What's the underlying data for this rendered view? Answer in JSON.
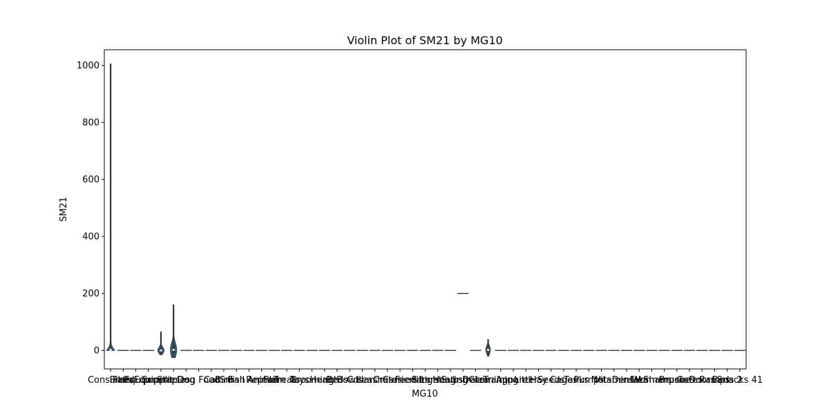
{
  "chart_data": {
    "type": "violin",
    "title": "Violin Plot of SM21 by MG10",
    "xlabel": "MG10",
    "ylabel": "SM21",
    "ylim": [
      -65,
      1055
    ],
    "yticks": [
      0,
      200,
      400,
      600,
      800,
      1000
    ],
    "n_categories": 51,
    "colors": {
      "fill": "#3a5f80",
      "line": "#333333",
      "axis": "#000000"
    },
    "categories": [
      "Consumer",
      "Flats",
      "Flats/Equip.",
      "Equipment",
      "Supplies",
      "Staples",
      "Dog",
      "Dog Food",
      "Cat",
      "Bird",
      "Fish",
      "Small Animal",
      "Reptile",
      "Farm",
      "Treats",
      "Toys",
      "Grooming",
      "Health",
      "Beds",
      "Bowls",
      "Collars",
      "Leashes",
      "Crates",
      "Carriers",
      "Feeders",
      "Filters",
      "Lighting",
      "Heating",
      "Substrate",
      "Decor",
      "Cleaning",
      "Training",
      "Apparel",
      "Litter",
      "Hay",
      "Seeds",
      "Cages",
      "Tanks",
      "Pumps",
      "Nets",
      "Vitamins",
      "Dental",
      "Flea",
      "Wormers",
      "Shampoo",
      "Brushes",
      "Gates",
      "Doors",
      "Ramps",
      "Beds 2",
      "Snacks 41"
    ],
    "violins": [
      {
        "index": 0,
        "min": 0,
        "max": 1005,
        "median": 2,
        "q1": 0,
        "q3": 5,
        "peak": 5,
        "half_width": 0.45
      },
      {
        "index": 1,
        "min": 0,
        "max": 0,
        "median": 0,
        "q1": 0,
        "q3": 0,
        "peak": 0,
        "half_width": 0.45
      },
      {
        "index": 2,
        "min": 0,
        "max": 0,
        "median": 0,
        "q1": 0,
        "q3": 0,
        "peak": 0,
        "half_width": 0.45
      },
      {
        "index": 3,
        "min": 0,
        "max": 0,
        "median": 0,
        "q1": 0,
        "q3": 0,
        "peak": 0,
        "half_width": 0.45
      },
      {
        "index": 4,
        "min": -15,
        "max": 65,
        "median": 0,
        "q1": -3,
        "q3": 6,
        "peak": 0,
        "half_width": 0.25
      },
      {
        "index": 5,
        "min": -25,
        "max": 160,
        "median": 2,
        "q1": -8,
        "q3": 12,
        "peak": 2,
        "half_width": 0.25
      },
      {
        "index": 6,
        "min": 0,
        "max": 0,
        "median": 0,
        "q1": 0,
        "q3": 0,
        "peak": 0,
        "half_width": 0.45
      },
      {
        "index": 7,
        "min": 0,
        "max": 0,
        "median": 0,
        "q1": 0,
        "q3": 0,
        "peak": 0,
        "half_width": 0.45
      },
      {
        "index": 8,
        "min": 0,
        "max": 0,
        "median": 0,
        "q1": 0,
        "q3": 0,
        "peak": 0,
        "half_width": 0.45
      },
      {
        "index": 9,
        "min": 0,
        "max": 0,
        "median": 0,
        "q1": 0,
        "q3": 0,
        "peak": 0,
        "half_width": 0.45
      },
      {
        "index": 10,
        "min": 0,
        "max": 0,
        "median": 0,
        "q1": 0,
        "q3": 0,
        "peak": 0,
        "half_width": 0.45
      },
      {
        "index": 11,
        "min": 0,
        "max": 0,
        "median": 0,
        "q1": 0,
        "q3": 0,
        "peak": 0,
        "half_width": 0.45
      },
      {
        "index": 12,
        "min": 0,
        "max": 0,
        "median": 0,
        "q1": 0,
        "q3": 0,
        "peak": 0,
        "half_width": 0.45
      },
      {
        "index": 13,
        "min": 0,
        "max": 0,
        "median": 0,
        "q1": 0,
        "q3": 0,
        "peak": 0,
        "half_width": 0.45
      },
      {
        "index": 14,
        "min": 0,
        "max": 0,
        "median": 0,
        "q1": 0,
        "q3": 0,
        "peak": 0,
        "half_width": 0.45
      },
      {
        "index": 15,
        "min": 0,
        "max": 0,
        "median": 0,
        "q1": 0,
        "q3": 0,
        "peak": 0,
        "half_width": 0.45
      },
      {
        "index": 16,
        "min": 0,
        "max": 0,
        "median": 0,
        "q1": 0,
        "q3": 0,
        "peak": 0,
        "half_width": 0.45
      },
      {
        "index": 17,
        "min": 0,
        "max": 0,
        "median": 0,
        "q1": 0,
        "q3": 0,
        "peak": 0,
        "half_width": 0.45
      },
      {
        "index": 18,
        "min": 0,
        "max": 0,
        "median": 0,
        "q1": 0,
        "q3": 0,
        "peak": 0,
        "half_width": 0.45
      },
      {
        "index": 19,
        "min": 0,
        "max": 0,
        "median": 0,
        "q1": 0,
        "q3": 0,
        "peak": 0,
        "half_width": 0.45
      },
      {
        "index": 20,
        "min": 0,
        "max": 0,
        "median": 0,
        "q1": 0,
        "q3": 0,
        "peak": 0,
        "half_width": 0.45
      },
      {
        "index": 21,
        "min": 0,
        "max": 0,
        "median": 0,
        "q1": 0,
        "q3": 0,
        "peak": 0,
        "half_width": 0.45
      },
      {
        "index": 22,
        "min": 0,
        "max": 0,
        "median": 0,
        "q1": 0,
        "q3": 0,
        "peak": 0,
        "half_width": 0.45
      },
      {
        "index": 23,
        "min": 0,
        "max": 0,
        "median": 0,
        "q1": 0,
        "q3": 0,
        "peak": 0,
        "half_width": 0.45
      },
      {
        "index": 24,
        "min": 0,
        "max": 0,
        "median": 0,
        "q1": 0,
        "q3": 0,
        "peak": 0,
        "half_width": 0.45
      },
      {
        "index": 25,
        "min": 0,
        "max": 0,
        "median": 0,
        "q1": 0,
        "q3": 0,
        "peak": 0,
        "half_width": 0.45
      },
      {
        "index": 26,
        "min": 0,
        "max": 0,
        "median": 0,
        "q1": 0,
        "q3": 0,
        "peak": 0,
        "half_width": 0.45
      },
      {
        "index": 27,
        "min": 0,
        "max": 0,
        "median": 0,
        "q1": 0,
        "q3": 0,
        "peak": 0,
        "half_width": 0.45
      },
      {
        "index": 28,
        "min": 200,
        "max": 200,
        "median": 200,
        "q1": 200,
        "q3": 200,
        "peak": 200,
        "half_width": 0.45
      },
      {
        "index": 29,
        "min": 0,
        "max": 0,
        "median": 0,
        "q1": 0,
        "q3": 0,
        "peak": 0,
        "half_width": 0.45
      },
      {
        "index": 30,
        "min": -20,
        "max": 38,
        "median": 2,
        "q1": -3,
        "q3": 8,
        "peak": 2,
        "half_width": 0.18
      },
      {
        "index": 31,
        "min": 0,
        "max": 0,
        "median": 0,
        "q1": 0,
        "q3": 0,
        "peak": 0,
        "half_width": 0.45
      },
      {
        "index": 32,
        "min": 0,
        "max": 0,
        "median": 0,
        "q1": 0,
        "q3": 0,
        "peak": 0,
        "half_width": 0.45
      },
      {
        "index": 33,
        "min": 0,
        "max": 0,
        "median": 0,
        "q1": 0,
        "q3": 0,
        "peak": 0,
        "half_width": 0.45
      },
      {
        "index": 34,
        "min": 0,
        "max": 0,
        "median": 0,
        "q1": 0,
        "q3": 0,
        "peak": 0,
        "half_width": 0.45
      },
      {
        "index": 35,
        "min": 0,
        "max": 0,
        "median": 0,
        "q1": 0,
        "q3": 0,
        "peak": 0,
        "half_width": 0.45
      },
      {
        "index": 36,
        "min": 0,
        "max": 0,
        "median": 0,
        "q1": 0,
        "q3": 0,
        "peak": 0,
        "half_width": 0.45
      },
      {
        "index": 37,
        "min": 0,
        "max": 0,
        "median": 0,
        "q1": 0,
        "q3": 0,
        "peak": 0,
        "half_width": 0.45
      },
      {
        "index": 38,
        "min": 0,
        "max": 0,
        "median": 0,
        "q1": 0,
        "q3": 0,
        "peak": 0,
        "half_width": 0.45
      },
      {
        "index": 39,
        "min": 0,
        "max": 0,
        "median": 0,
        "q1": 0,
        "q3": 0,
        "peak": 0,
        "half_width": 0.45
      },
      {
        "index": 40,
        "min": 0,
        "max": 0,
        "median": 0,
        "q1": 0,
        "q3": 0,
        "peak": 0,
        "half_width": 0.45
      },
      {
        "index": 41,
        "min": 0,
        "max": 0,
        "median": 0,
        "q1": 0,
        "q3": 0,
        "peak": 0,
        "half_width": 0.45
      },
      {
        "index": 42,
        "min": 0,
        "max": 0,
        "median": 0,
        "q1": 0,
        "q3": 0,
        "peak": 0,
        "half_width": 0.45
      },
      {
        "index": 43,
        "min": 0,
        "max": 0,
        "median": 0,
        "q1": 0,
        "q3": 0,
        "peak": 0,
        "half_width": 0.45
      },
      {
        "index": 44,
        "min": 0,
        "max": 0,
        "median": 0,
        "q1": 0,
        "q3": 0,
        "peak": 0,
        "half_width": 0.45
      },
      {
        "index": 45,
        "min": 0,
        "max": 0,
        "median": 0,
        "q1": 0,
        "q3": 0,
        "peak": 0,
        "half_width": 0.45
      },
      {
        "index": 46,
        "min": 0,
        "max": 0,
        "median": 0,
        "q1": 0,
        "q3": 0,
        "peak": 0,
        "half_width": 0.45
      },
      {
        "index": 47,
        "min": 0,
        "max": 0,
        "median": 0,
        "q1": 0,
        "q3": 0,
        "peak": 0,
        "half_width": 0.45
      },
      {
        "index": 48,
        "min": 0,
        "max": 0,
        "median": 0,
        "q1": 0,
        "q3": 0,
        "peak": 0,
        "half_width": 0.45
      },
      {
        "index": 49,
        "min": 0,
        "max": 0,
        "median": 0,
        "q1": 0,
        "q3": 0,
        "peak": 0,
        "half_width": 0.45
      },
      {
        "index": 50,
        "min": 0,
        "max": 0,
        "median": 0,
        "q1": 0,
        "q3": 0,
        "peak": 0,
        "half_width": 0.45
      }
    ]
  }
}
